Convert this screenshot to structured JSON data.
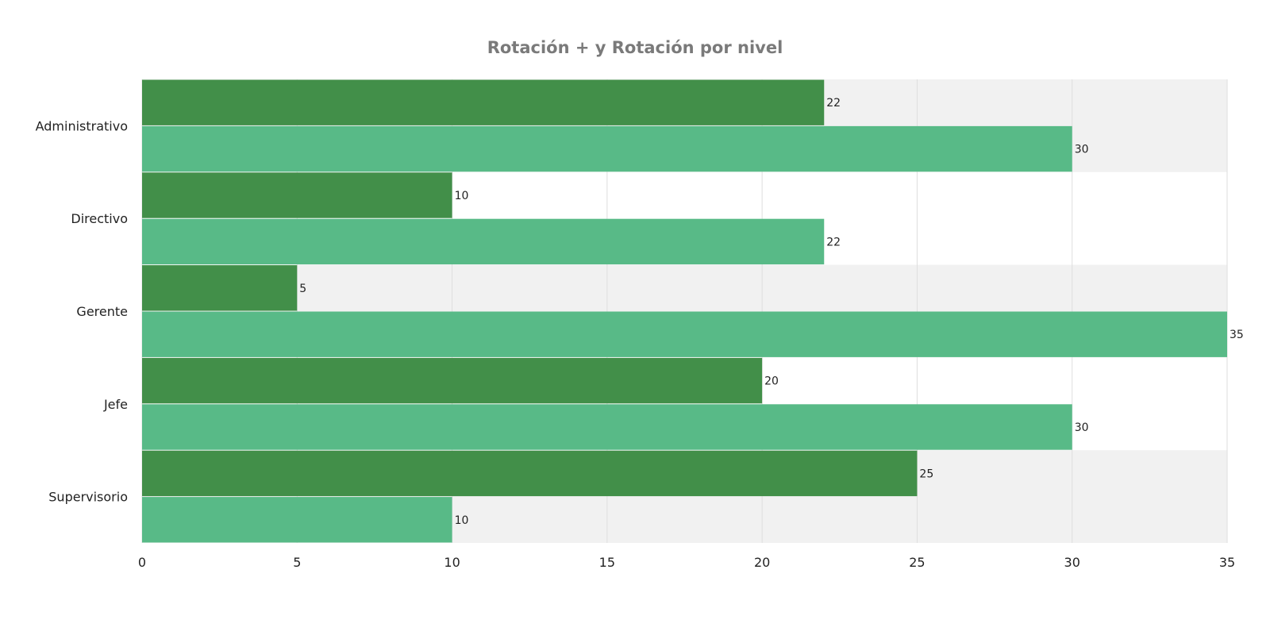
{
  "chart_data": {
    "type": "bar",
    "orientation": "horizontal",
    "title": "Rotación + y Rotación por nivel",
    "categories": [
      "Administrativo",
      "Directivo",
      "Gerente",
      "Jefe",
      "Supervisorio"
    ],
    "series": [
      {
        "values": [
          22,
          10,
          5,
          20,
          25
        ],
        "color": "#428f49"
      },
      {
        "values": [
          30,
          22,
          35,
          30,
          10
        ],
        "color": "#58ba87"
      }
    ],
    "xlim": [
      0,
      35
    ],
    "xticks": [
      0,
      5,
      10,
      15,
      20,
      25,
      30,
      35
    ],
    "grid": true,
    "alternating_band_color": "#f1f1f1",
    "data_labels": true
  }
}
